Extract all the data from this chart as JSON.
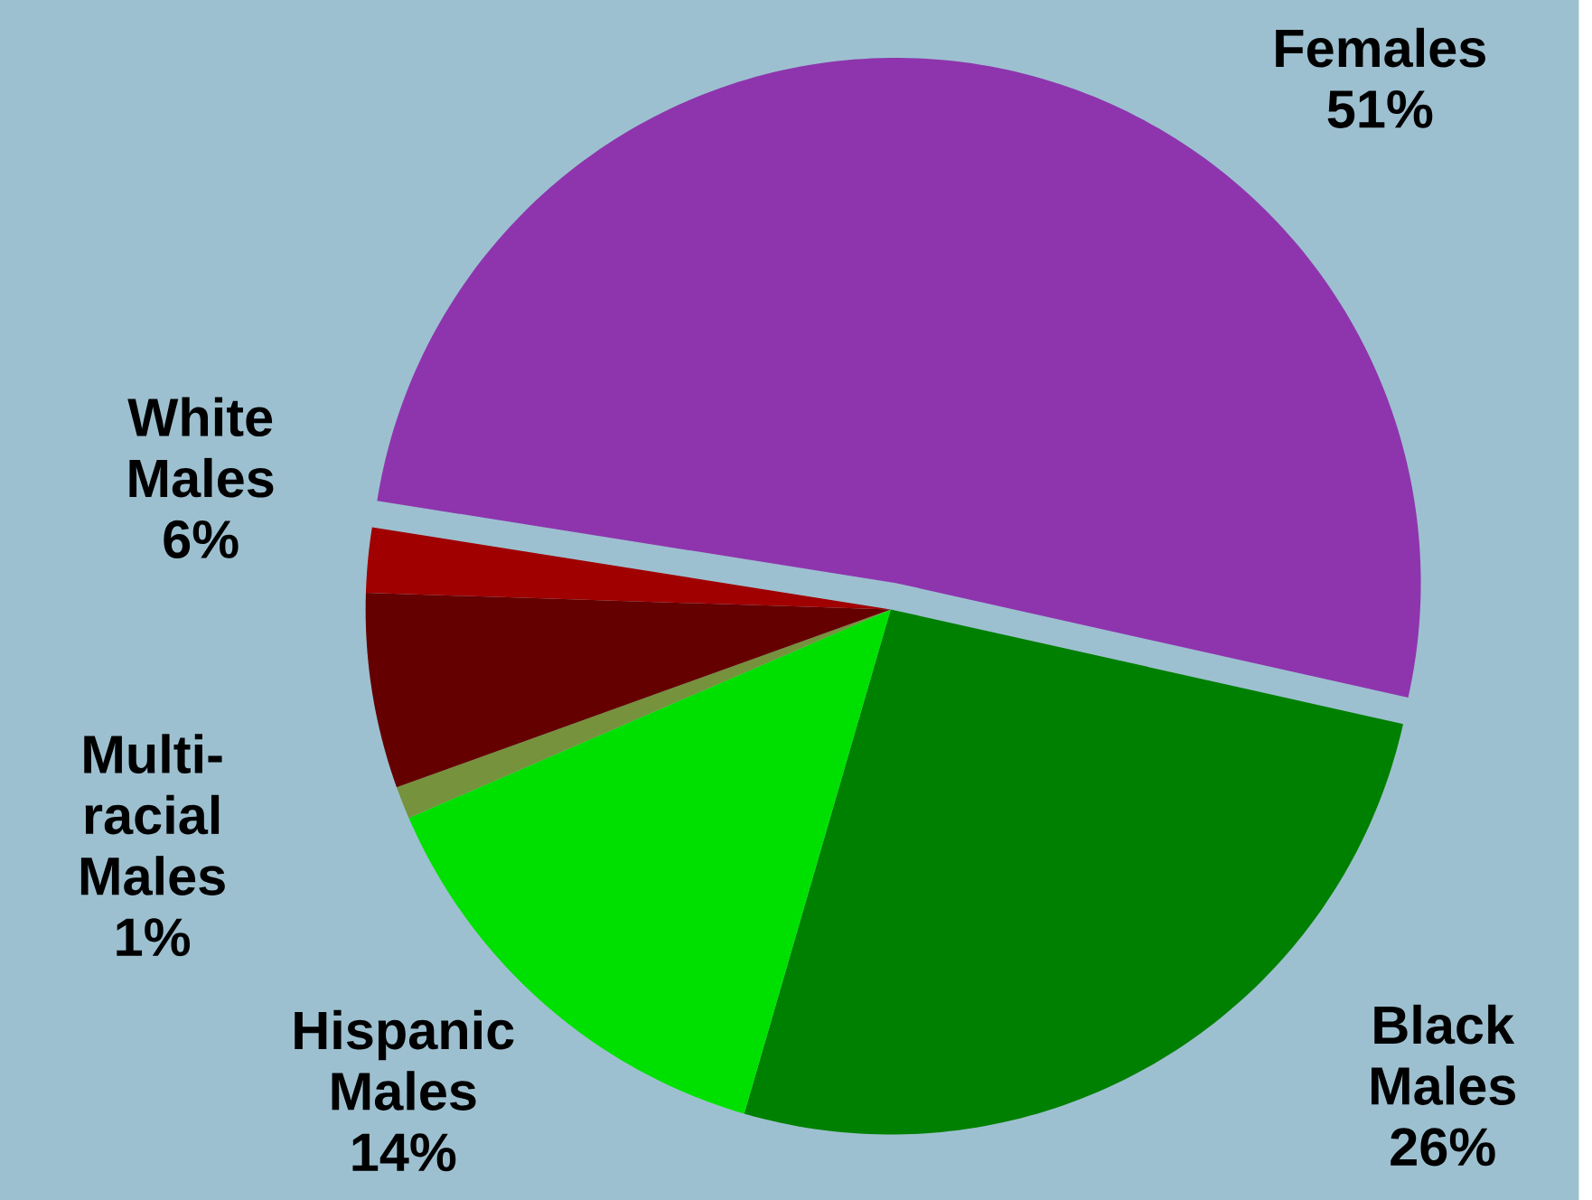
{
  "chart_data": {
    "type": "pie",
    "categories": [
      "Females",
      "Black Males",
      "Hispanic Males",
      "Multi-racial Males",
      "White Males",
      null
    ],
    "values": [
      51,
      26,
      14,
      1,
      6,
      2
    ],
    "value_labels": [
      "51%",
      "26%",
      "14%",
      "1%",
      "6%",
      null
    ],
    "colors": [
      "#8e35ad",
      "#008000",
      "#00e000",
      "#76923c",
      "#640000",
      "#a00000"
    ]
  }
}
